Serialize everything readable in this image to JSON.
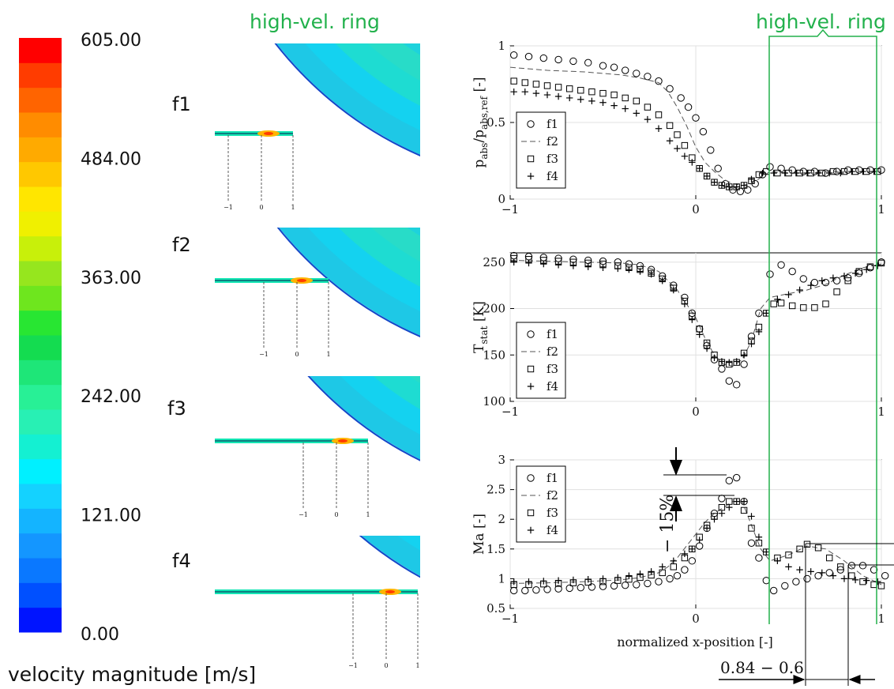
{
  "headline_left": "high-vel. ring",
  "headline_right": "high-vel. ring",
  "colorbar": {
    "ticks": [
      "605.00",
      "484.00",
      "363.00",
      "242.00",
      "121.00",
      "0.00"
    ],
    "label": "velocity magnitude [m/s]",
    "colors": [
      "#0014ff",
      "#0050ff",
      "#0a78ff",
      "#1496ff",
      "#14b4ff",
      "#14d2ff",
      "#00f0ff",
      "#14f0d2",
      "#28f0b4",
      "#28f096",
      "#1ee678",
      "#14dc50",
      "#28e632",
      "#6ee61e",
      "#96e61e",
      "#c8f00a",
      "#f0f000",
      "#ffe600",
      "#ffc800",
      "#ffaa00",
      "#ff8c00",
      "#ff6400",
      "#ff3c00",
      "#ff0000"
    ]
  },
  "contours": [
    {
      "label": "f1",
      "marks": [
        "−1",
        "0",
        "1"
      ]
    },
    {
      "label": "f2",
      "marks": [
        "−1",
        "0",
        "1"
      ]
    },
    {
      "label": "f3",
      "marks": [
        "−1",
        "0",
        "1"
      ]
    },
    {
      "label": "f4",
      "marks": [
        "−1",
        "0",
        "1"
      ]
    }
  ],
  "shared_xlabel": "normalized x-position [-]",
  "legend_names": [
    "f1",
    "f2",
    "f3",
    "f4"
  ],
  "annotations": {
    "ma_drop": "− 15%",
    "shift": "0.84 − 0.6"
  },
  "chart_data": [
    {
      "type": "scatter",
      "ylabel_main": "p",
      "ylabel_sub": "abs",
      "ylabel_mid": "/p",
      "ylabel_sub2": "abs,ref",
      "ylabel_tail": " [-]",
      "xlim": [
        -1,
        1
      ],
      "ylim": [
        0,
        1
      ],
      "xticks": [
        "−1",
        "0",
        "1"
      ],
      "yticks": [
        "0",
        "0.5",
        "1"
      ],
      "ytick_values": [
        0,
        0.5,
        1
      ],
      "grid": true,
      "legend": "left-bottom",
      "series": [
        {
          "name": "f1",
          "marker": "circle",
          "x": [
            -0.98,
            -0.9,
            -0.82,
            -0.74,
            -0.66,
            -0.58,
            -0.5,
            -0.44,
            -0.38,
            -0.32,
            -0.26,
            -0.2,
            -0.14,
            -0.08,
            -0.04,
            0.0,
            0.04,
            0.08,
            0.12,
            0.16,
            0.2,
            0.24,
            0.28,
            0.32,
            0.36,
            0.4,
            0.46,
            0.52,
            0.58,
            0.64,
            0.7,
            0.76,
            0.82,
            0.88,
            0.94,
            1.0
          ],
          "y": [
            0.94,
            0.93,
            0.92,
            0.91,
            0.9,
            0.89,
            0.87,
            0.86,
            0.84,
            0.82,
            0.8,
            0.77,
            0.72,
            0.66,
            0.6,
            0.53,
            0.44,
            0.32,
            0.2,
            0.1,
            0.06,
            0.05,
            0.06,
            0.1,
            0.16,
            0.21,
            0.2,
            0.19,
            0.18,
            0.18,
            0.17,
            0.18,
            0.19,
            0.19,
            0.19,
            0.19
          ]
        },
        {
          "name": "f2",
          "marker": "dash",
          "x": [
            -1.0,
            -0.8,
            -0.6,
            -0.4,
            -0.3,
            -0.2,
            -0.15,
            -0.1,
            -0.05,
            0.0,
            0.05,
            0.1,
            0.15,
            0.2,
            0.25,
            0.3,
            0.35,
            0.4,
            0.5,
            0.6,
            0.7,
            0.8,
            0.9,
            1.0
          ],
          "y": [
            0.86,
            0.84,
            0.83,
            0.81,
            0.79,
            0.76,
            0.7,
            0.6,
            0.48,
            0.34,
            0.24,
            0.18,
            0.13,
            0.1,
            0.09,
            0.1,
            0.14,
            0.18,
            0.17,
            0.17,
            0.18,
            0.18,
            0.18,
            0.18
          ]
        },
        {
          "name": "f3",
          "marker": "square",
          "x": [
            -0.98,
            -0.92,
            -0.86,
            -0.8,
            -0.74,
            -0.68,
            -0.62,
            -0.56,
            -0.5,
            -0.44,
            -0.38,
            -0.32,
            -0.26,
            -0.2,
            -0.14,
            -0.1,
            -0.06,
            -0.02,
            0.02,
            0.06,
            0.1,
            0.14,
            0.18,
            0.22,
            0.26,
            0.3,
            0.34,
            0.38,
            0.44,
            0.5,
            0.56,
            0.62,
            0.68,
            0.74,
            0.8,
            0.86,
            0.92,
            0.98
          ],
          "y": [
            0.77,
            0.76,
            0.75,
            0.74,
            0.73,
            0.72,
            0.71,
            0.7,
            0.69,
            0.68,
            0.66,
            0.64,
            0.6,
            0.55,
            0.48,
            0.42,
            0.35,
            0.27,
            0.2,
            0.15,
            0.11,
            0.09,
            0.08,
            0.08,
            0.09,
            0.12,
            0.16,
            0.18,
            0.17,
            0.17,
            0.17,
            0.17,
            0.17,
            0.18,
            0.18,
            0.18,
            0.18,
            0.18
          ]
        },
        {
          "name": "f4",
          "marker": "plus",
          "x": [
            -0.98,
            -0.92,
            -0.86,
            -0.8,
            -0.74,
            -0.68,
            -0.62,
            -0.56,
            -0.5,
            -0.44,
            -0.38,
            -0.32,
            -0.26,
            -0.2,
            -0.14,
            -0.1,
            -0.06,
            -0.02,
            0.02,
            0.06,
            0.1,
            0.14,
            0.18,
            0.22,
            0.26,
            0.3,
            0.36,
            0.42,
            0.48,
            0.54,
            0.6,
            0.66,
            0.72,
            0.78,
            0.84,
            0.9,
            0.96
          ],
          "y": [
            0.7,
            0.7,
            0.69,
            0.68,
            0.67,
            0.66,
            0.65,
            0.64,
            0.63,
            0.61,
            0.59,
            0.56,
            0.52,
            0.46,
            0.38,
            0.33,
            0.28,
            0.24,
            0.2,
            0.15,
            0.11,
            0.09,
            0.08,
            0.08,
            0.09,
            0.13,
            0.17,
            0.17,
            0.17,
            0.17,
            0.17,
            0.17,
            0.17,
            0.17,
            0.18,
            0.18,
            0.18
          ]
        }
      ]
    },
    {
      "type": "scatter",
      "ylabel_main": "T",
      "ylabel_sub": "stat",
      "ylabel_mid": "",
      "ylabel_sub2": "",
      "ylabel_tail": " [K]",
      "xlim": [
        -1,
        1
      ],
      "ylim": [
        100,
        260
      ],
      "xticks": [
        "−1",
        "0",
        "1"
      ],
      "yticks": [
        "100",
        "150",
        "200",
        "250"
      ],
      "ytick_values": [
        100,
        150,
        200,
        250
      ],
      "grid": true,
      "legend": "left-bottom",
      "series": [
        {
          "name": "f1",
          "marker": "circle",
          "x": [
            -0.98,
            -0.9,
            -0.82,
            -0.74,
            -0.66,
            -0.58,
            -0.5,
            -0.42,
            -0.36,
            -0.3,
            -0.24,
            -0.18,
            -0.12,
            -0.06,
            -0.02,
            0.02,
            0.06,
            0.1,
            0.14,
            0.18,
            0.22,
            0.26,
            0.3,
            0.34,
            0.4,
            0.46,
            0.52,
            0.58,
            0.64,
            0.7,
            0.76,
            0.82,
            0.88,
            0.94,
            1.0
          ],
          "y": [
            257,
            256,
            255,
            254,
            253,
            252,
            251,
            250,
            248,
            246,
            242,
            235,
            225,
            212,
            195,
            178,
            160,
            145,
            135,
            122,
            118,
            140,
            170,
            195,
            237,
            247,
            240,
            232,
            228,
            228,
            230,
            233,
            238,
            244,
            250
          ]
        },
        {
          "name": "f2",
          "marker": "dash",
          "x": [
            -1.0,
            -0.8,
            -0.6,
            -0.4,
            -0.3,
            -0.2,
            -0.1,
            0.0,
            0.05,
            0.1,
            0.15,
            0.2,
            0.25,
            0.3,
            0.35,
            0.4,
            0.5,
            0.6,
            0.7,
            0.8,
            0.9,
            1.0
          ],
          "y": [
            252,
            251,
            250,
            249,
            247,
            240,
            220,
            190,
            168,
            150,
            140,
            138,
            145,
            165,
            200,
            212,
            216,
            220,
            226,
            236,
            244,
            248
          ]
        },
        {
          "name": "f3",
          "marker": "square",
          "x": [
            -0.98,
            -0.9,
            -0.82,
            -0.74,
            -0.66,
            -0.58,
            -0.5,
            -0.42,
            -0.36,
            -0.3,
            -0.24,
            -0.18,
            -0.12,
            -0.06,
            -0.02,
            0.02,
            0.06,
            0.1,
            0.14,
            0.18,
            0.22,
            0.26,
            0.3,
            0.34,
            0.38,
            0.42,
            0.46,
            0.52,
            0.58,
            0.64,
            0.7,
            0.76,
            0.82,
            0.88,
            0.94,
            1.0
          ],
          "y": [
            254,
            253,
            252,
            251,
            250,
            249,
            248,
            246,
            244,
            242,
            238,
            232,
            222,
            208,
            192,
            178,
            163,
            150,
            142,
            140,
            142,
            152,
            165,
            180,
            195,
            205,
            206,
            203,
            201,
            201,
            205,
            218,
            230,
            240,
            245,
            249
          ]
        },
        {
          "name": "f4",
          "marker": "plus",
          "x": [
            -0.98,
            -0.9,
            -0.82,
            -0.74,
            -0.66,
            -0.58,
            -0.5,
            -0.42,
            -0.36,
            -0.3,
            -0.24,
            -0.18,
            -0.12,
            -0.06,
            -0.02,
            0.02,
            0.06,
            0.1,
            0.14,
            0.18,
            0.22,
            0.26,
            0.3,
            0.34,
            0.38,
            0.44,
            0.5,
            0.56,
            0.62,
            0.68,
            0.74,
            0.8,
            0.86,
            0.92,
            0.98
          ],
          "y": [
            250,
            249,
            248,
            247,
            246,
            245,
            244,
            243,
            242,
            240,
            237,
            230,
            220,
            205,
            188,
            172,
            157,
            147,
            143,
            142,
            143,
            150,
            162,
            175,
            195,
            210,
            215,
            220,
            225,
            230,
            233,
            235,
            238,
            242,
            246
          ]
        }
      ]
    },
    {
      "type": "scatter",
      "ylabel_main": "Ma [-]",
      "ylabel_sub": "",
      "ylabel_mid": "",
      "ylabel_sub2": "",
      "ylabel_tail": "",
      "xlim": [
        -1,
        1
      ],
      "ylim": [
        0.5,
        3
      ],
      "xticks": [
        "−1",
        "0",
        "1"
      ],
      "yticks": [
        "0.5",
        "1",
        "1.5",
        "2",
        "2.5",
        "3"
      ],
      "ytick_values": [
        0.5,
        1,
        1.5,
        2,
        2.5,
        3
      ],
      "grid": true,
      "legend": "left-top",
      "series": [
        {
          "name": "f1",
          "marker": "circle",
          "x": [
            -0.98,
            -0.92,
            -0.86,
            -0.8,
            -0.74,
            -0.68,
            -0.62,
            -0.56,
            -0.5,
            -0.44,
            -0.38,
            -0.32,
            -0.26,
            -0.2,
            -0.14,
            -0.1,
            -0.06,
            -0.02,
            0.02,
            0.06,
            0.1,
            0.14,
            0.18,
            0.22,
            0.26,
            0.3,
            0.34,
            0.38,
            0.42,
            0.48,
            0.54,
            0.6,
            0.66,
            0.72,
            0.78,
            0.84,
            0.9,
            0.96,
            1.02
          ],
          "y": [
            0.8,
            0.8,
            0.81,
            0.82,
            0.83,
            0.84,
            0.85,
            0.86,
            0.87,
            0.88,
            0.89,
            0.9,
            0.92,
            0.95,
            1.0,
            1.05,
            1.15,
            1.3,
            1.55,
            1.85,
            2.1,
            2.35,
            2.65,
            2.7,
            2.3,
            1.6,
            1.35,
            0.97,
            0.8,
            0.88,
            0.95,
            1.0,
            1.05,
            1.1,
            1.15,
            1.22,
            1.22,
            1.15,
            1.05
          ]
        },
        {
          "name": "f2",
          "marker": "dash",
          "x": [
            -1.0,
            -0.8,
            -0.6,
            -0.4,
            -0.3,
            -0.2,
            -0.15,
            -0.1,
            -0.05,
            0.0,
            0.05,
            0.1,
            0.15,
            0.2,
            0.25,
            0.3,
            0.35,
            0.4,
            0.5,
            0.6,
            0.7,
            0.8,
            0.9,
            1.0
          ],
          "y": [
            0.92,
            0.93,
            0.95,
            0.98,
            1.02,
            1.1,
            1.2,
            1.35,
            1.55,
            1.75,
            1.95,
            2.1,
            2.2,
            2.3,
            2.3,
            1.9,
            1.5,
            1.3,
            1.4,
            1.55,
            1.5,
            1.3,
            1.05,
            0.9
          ]
        },
        {
          "name": "f3",
          "marker": "square",
          "x": [
            -0.98,
            -0.9,
            -0.82,
            -0.74,
            -0.66,
            -0.58,
            -0.5,
            -0.42,
            -0.36,
            -0.3,
            -0.24,
            -0.18,
            -0.12,
            -0.06,
            -0.02,
            0.02,
            0.06,
            0.1,
            0.14,
            0.18,
            0.22,
            0.26,
            0.3,
            0.34,
            0.38,
            0.44,
            0.5,
            0.56,
            0.6,
            0.66,
            0.72,
            0.78,
            0.84,
            0.9,
            0.96,
            1.0
          ],
          "y": [
            0.9,
            0.9,
            0.91,
            0.92,
            0.93,
            0.94,
            0.95,
            0.97,
            0.99,
            1.02,
            1.06,
            1.1,
            1.2,
            1.35,
            1.5,
            1.7,
            1.9,
            2.05,
            2.2,
            2.3,
            2.3,
            2.15,
            1.85,
            1.6,
            1.45,
            1.35,
            1.4,
            1.5,
            1.58,
            1.52,
            1.35,
            1.2,
            1.05,
            0.95,
            0.9,
            0.88
          ]
        },
        {
          "name": "f4",
          "marker": "plus",
          "x": [
            -0.98,
            -0.9,
            -0.82,
            -0.74,
            -0.66,
            -0.58,
            -0.5,
            -0.42,
            -0.36,
            -0.3,
            -0.24,
            -0.18,
            -0.12,
            -0.06,
            -0.02,
            0.02,
            0.06,
            0.1,
            0.14,
            0.18,
            0.22,
            0.26,
            0.3,
            0.34,
            0.38,
            0.44,
            0.5,
            0.56,
            0.62,
            0.68,
            0.74,
            0.8,
            0.86,
            0.92,
            0.98
          ],
          "y": [
            0.95,
            0.95,
            0.96,
            0.97,
            0.98,
            0.99,
            1.0,
            1.02,
            1.05,
            1.08,
            1.12,
            1.2,
            1.3,
            1.42,
            1.5,
            1.65,
            1.85,
            2.0,
            2.1,
            2.2,
            2.3,
            2.3,
            2.05,
            1.7,
            1.45,
            1.3,
            1.2,
            1.15,
            1.12,
            1.1,
            1.05,
            1.0,
            0.98,
            0.97,
            0.95
          ]
        }
      ]
    }
  ]
}
